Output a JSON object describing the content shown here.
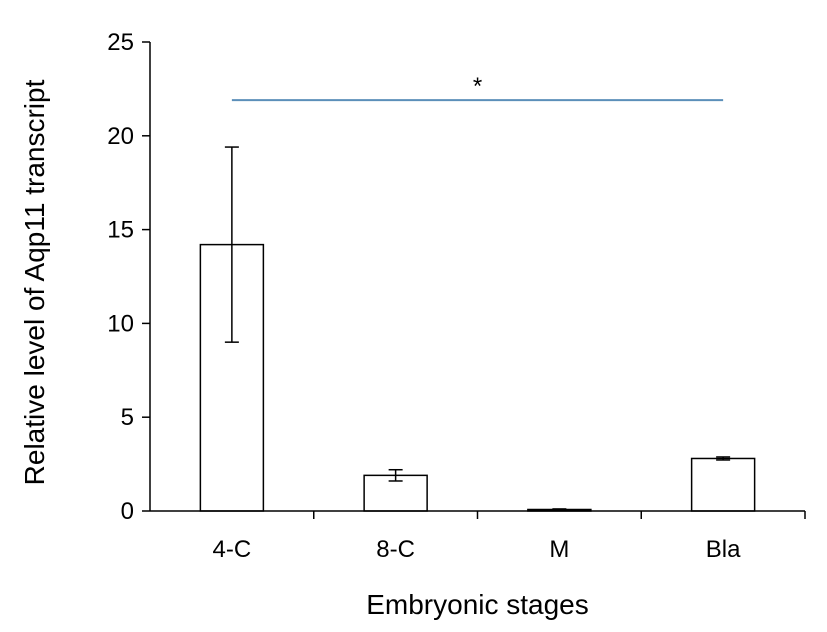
{
  "chart_data": {
    "type": "bar",
    "title": "",
    "xlabel": "Embryonic stages",
    "ylabel": "Relative level of Aqp11 transcript",
    "categories": [
      "4-C",
      "8-C",
      "M",
      "Bla"
    ],
    "values": [
      14.2,
      1.9,
      0.08,
      2.8
    ],
    "error": [
      5.2,
      0.3,
      0.03,
      0.08
    ],
    "ylim": [
      0,
      25
    ],
    "yticks": [
      0,
      5,
      10,
      15,
      20,
      25
    ],
    "grid": false,
    "bar_color": "#ffffff",
    "bar_edge_color": "#000000",
    "significance": {
      "from": "4-C",
      "to": "Bla",
      "y": 21.9,
      "label": "*",
      "color": "#5b8fb9"
    }
  }
}
